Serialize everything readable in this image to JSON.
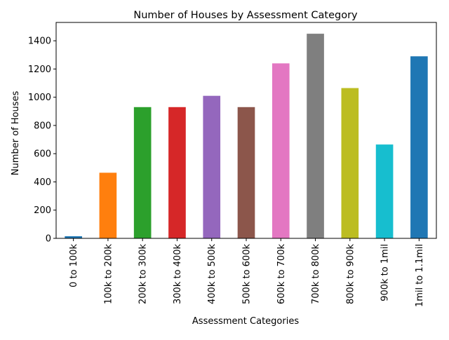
{
  "chart_data": {
    "type": "bar",
    "title": "Number of Houses by Assessment Category",
    "xlabel": "Assessment Categories",
    "ylabel": "Number of Houses",
    "ylim": [
      0,
      1530
    ],
    "yticks": [
      0,
      200,
      400,
      600,
      800,
      1000,
      1200,
      1400
    ],
    "grid": false,
    "legend": "none",
    "categories": [
      "0 to 100k",
      "100k to 200k",
      "200k to 300k",
      "300k to 400k",
      "400k to 500k",
      "500k to 600k",
      "600k to 700k",
      "700k to 800k",
      "800k to 900k",
      "900k to 1mil",
      "1mil to 1.1mil"
    ],
    "values": [
      15,
      465,
      930,
      930,
      1010,
      930,
      1240,
      1450,
      1065,
      665,
      1290
    ],
    "colors": [
      "#1f77b4",
      "#ff7f0e",
      "#2ca02c",
      "#d62728",
      "#9467bd",
      "#8c564b",
      "#e377c2",
      "#7f7f7f",
      "#bcbd22",
      "#17becf",
      "#1f77b4"
    ]
  }
}
